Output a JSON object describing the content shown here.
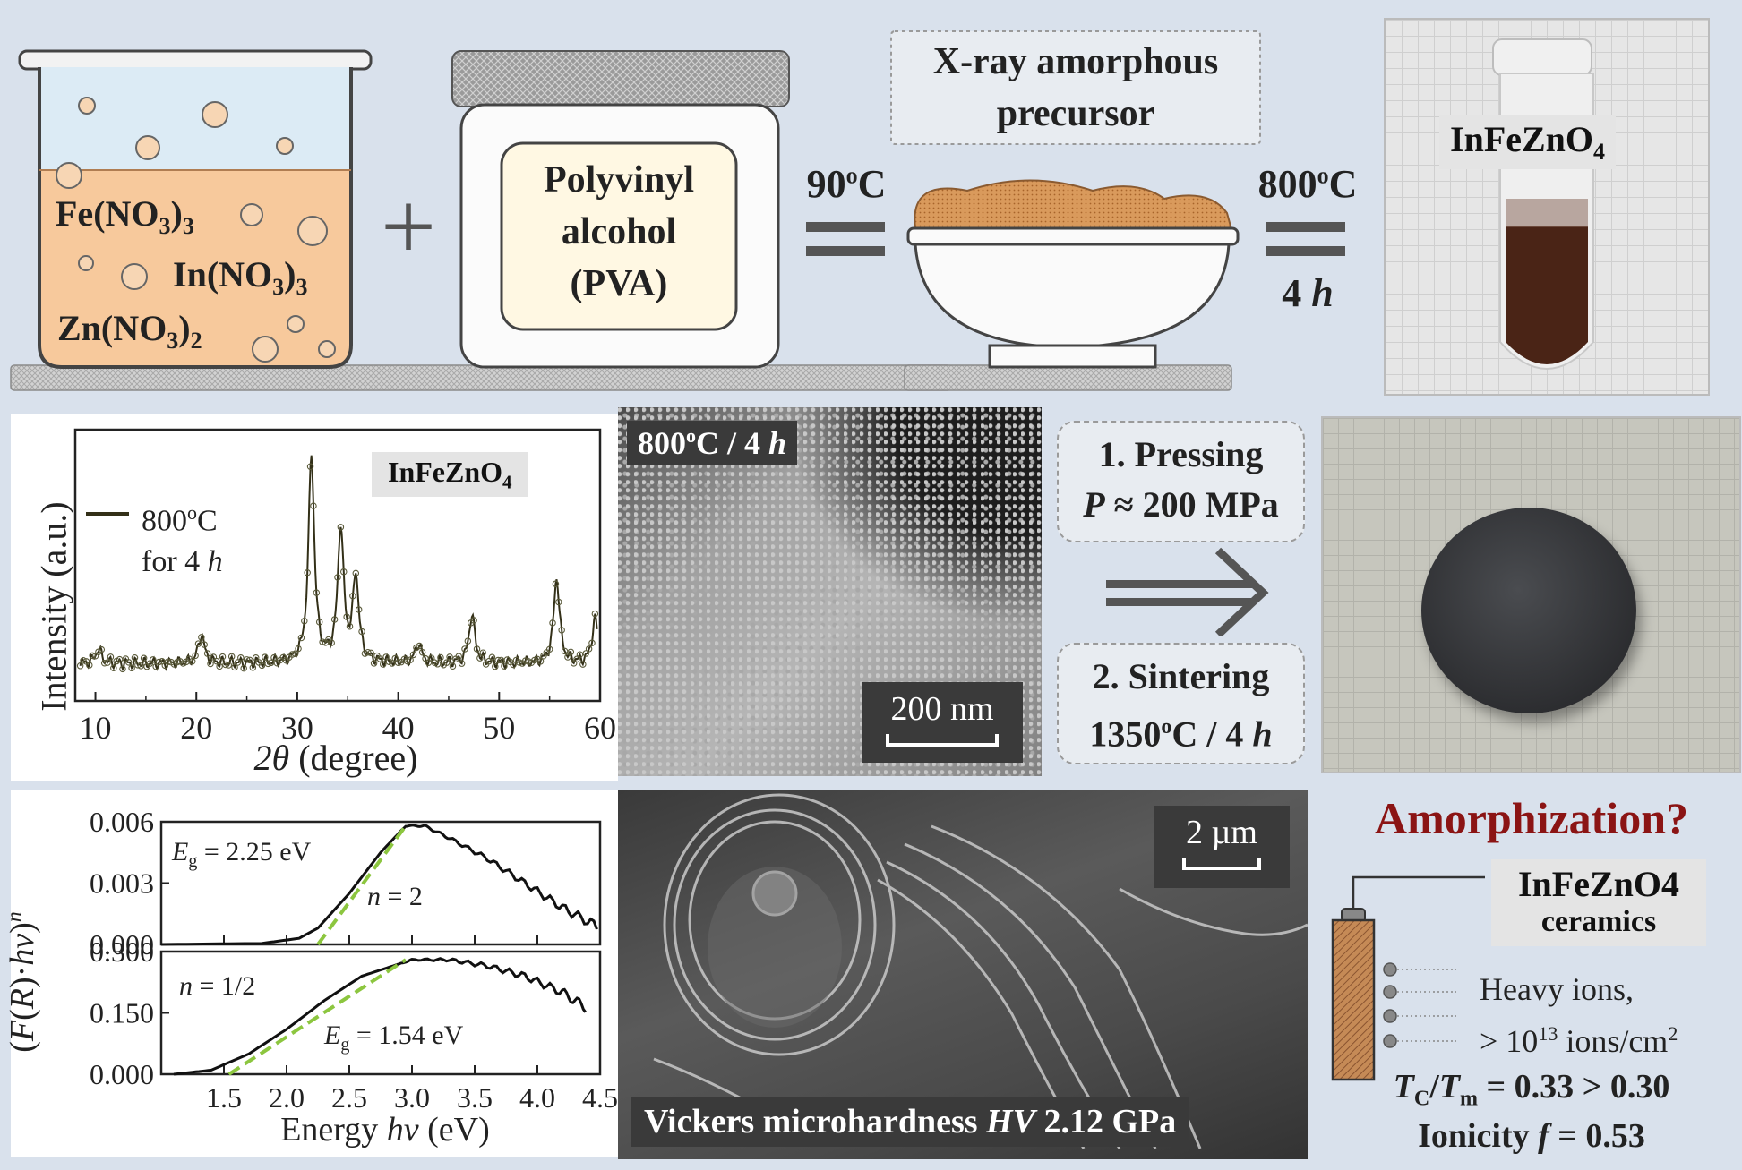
{
  "synthesis": {
    "beaker_reagents": [
      "Fe(NO",
      "3",
      ")",
      "3",
      "In(NO",
      "3",
      ")",
      "3",
      "Zn(NO",
      "3",
      ")",
      "2"
    ],
    "plus": "+",
    "jar_text": [
      "Polyvinyl",
      "alcohol",
      "(PVA)"
    ],
    "step1_temp": "90",
    "step1_temp_sup": "o",
    "step1_temp_unit": "C",
    "precursor_label": [
      "X-ray amorphous",
      "precursor"
    ],
    "step2_temp": "800",
    "step2_temp_sup": "o",
    "step2_temp_unit": "C",
    "step2_time": "4",
    "step2_time_unit": "h",
    "photo_label": "InFeZnO",
    "photo_label_sub": "4"
  },
  "xrd": {
    "legend_line1": "800",
    "legend_sup": "o",
    "legend_line1_unit": "C",
    "legend_line2": "for 4",
    "legend_line2_h": "h",
    "label": "InFeZnO",
    "label_sub": "4",
    "ylabel": "Intensity (a.u.)",
    "xlabel_theta": "2θ",
    "xlabel_rest": " (degree)",
    "xticks": [
      "10",
      "20",
      "30",
      "40",
      "50",
      "60"
    ]
  },
  "sem1": {
    "label": "800",
    "label_sup": "o",
    "label_rest": "C / 4",
    "label_h": "h",
    "scalebar": "200 nm"
  },
  "process": {
    "step1_line1": "1. Pressing",
    "step1_line2_P": "P",
    "step1_line2_rest": " ≈ 200 MPa",
    "step2_line1": "2. Sintering",
    "step2_line2": "1350",
    "step2_sup": "o",
    "step2_rest": "C / 4",
    "step2_h": "h"
  },
  "sem2": {
    "scalebar": "2 µm",
    "caption_pre": "Vickers microhardness ",
    "caption_HV": "HV",
    "caption_post": " 2.12 GPa"
  },
  "summary": {
    "title": "Amorphization?",
    "label": "InFeZnO",
    "label_sub": "4",
    "label2": "ceramics",
    "ions_line1": "Heavy ions,",
    "ions_line2_pre": "> 10",
    "ions_line2_sup": "13",
    "ions_line2_post": " ions/cm",
    "ions_line2_sup2": "2",
    "tc_T": "T",
    "tc_C": "C",
    "tc_slash": "/",
    "tc_m": "m",
    "tc_rest": " = 0.33 > 0.30",
    "ionicity": "Ionicity ",
    "ionicity_f": "f",
    "ionicity_rest": " = 0.53",
    "title_color": "#8b1414"
  },
  "chart_data": [
    {
      "type": "scatter",
      "title": "",
      "xlabel": "2θ (degree)",
      "ylabel": "Intensity (a.u.)",
      "xlim": [
        8,
        60
      ],
      "x_ticks": [
        10,
        20,
        30,
        40,
        50,
        60
      ],
      "series": [
        {
          "name": "800°C for 4 h",
          "peaks_2theta": [
            10.3,
            20.5,
            31.4,
            34.3,
            35.8,
            42.0,
            47.3,
            55.7,
            59.5
          ]
        }
      ]
    },
    {
      "type": "line",
      "title": "",
      "xlabel": "Energy hν (eV)",
      "ylabel": "(F(R)·hν)^n",
      "xlim": [
        1.0,
        4.5
      ],
      "panels": [
        {
          "ylim": [
            0,
            0.006
          ],
          "y_ticks": [
            "0.000",
            "0.003",
            "0.006"
          ],
          "n": "2",
          "Eg": "2.25 eV",
          "x": [
            1.0,
            1.8,
            2.1,
            2.25,
            2.5,
            2.75,
            2.95,
            3.1,
            3.3,
            3.6,
            3.9,
            4.2,
            4.5
          ],
          "y": [
            0.0,
            5e-05,
            0.0003,
            0.0008,
            0.0025,
            0.0045,
            0.0058,
            0.0058,
            0.0052,
            0.0042,
            0.003,
            0.0018,
            0.0008
          ]
        },
        {
          "ylim": [
            0,
            0.3
          ],
          "y_ticks": [
            "0.000",
            "0.150",
            "0.300"
          ],
          "n": "1/2",
          "Eg": "1.54 eV",
          "x": [
            1.1,
            1.4,
            1.7,
            2.0,
            2.3,
            2.6,
            2.9,
            3.0,
            3.3,
            3.6,
            3.9,
            4.2,
            4.4
          ],
          "y": [
            0.0,
            0.01,
            0.05,
            0.11,
            0.18,
            0.24,
            0.27,
            0.28,
            0.28,
            0.265,
            0.24,
            0.2,
            0.16
          ]
        }
      ]
    }
  ]
}
